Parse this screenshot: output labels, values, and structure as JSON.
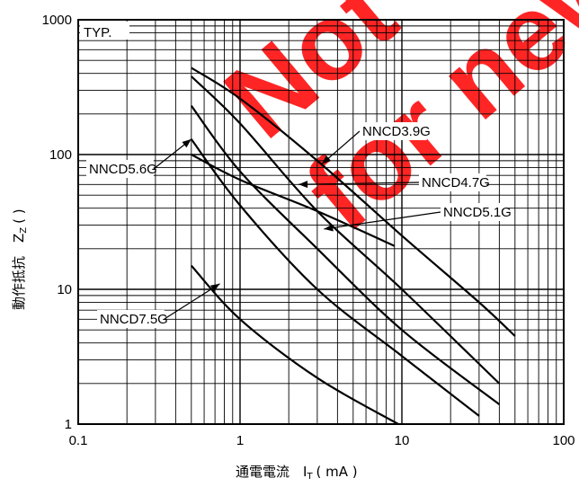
{
  "chart_data": {
    "type": "line",
    "corner_label": "TYP.",
    "xlabel": "通電電流　I",
    "xlabel_sub": "T",
    "xlabel_unit": "( mA )",
    "ylabel": "動作抵抗　Z",
    "ylabel_sub": "Z",
    "ylabel_unit": "(    )",
    "x_scale": "log",
    "y_scale": "log",
    "xlim": [
      0.1,
      100
    ],
    "ylim": [
      1,
      1000
    ],
    "x_ticks": [
      "0.1",
      "1",
      "10",
      "100"
    ],
    "y_ticks": [
      "1",
      "10",
      "100",
      "1000"
    ],
    "grid": true,
    "watermark": [
      "Not",
      "for new"
    ],
    "series": [
      {
        "name": "NNCD3.9G",
        "points": [
          [
            0.5,
            440
          ],
          [
            1,
            260
          ],
          [
            3,
            90
          ],
          [
            10,
            25
          ],
          [
            30,
            8
          ],
          [
            50,
            4.5
          ]
        ]
      },
      {
        "name": "NNCD4.7G",
        "points": [
          [
            0.5,
            380
          ],
          [
            1,
            170
          ],
          [
            3,
            38
          ],
          [
            10,
            10
          ],
          [
            40,
            2
          ]
        ]
      },
      {
        "name": "NNCD5.1G",
        "points": [
          [
            0.5,
            230
          ],
          [
            1,
            75
          ],
          [
            3,
            20
          ],
          [
            10,
            5
          ],
          [
            40,
            1.4
          ]
        ]
      },
      {
        "name": "NNCD5.6G",
        "points": [
          [
            0.5,
            130
          ],
          [
            1,
            42
          ],
          [
            3,
            10
          ],
          [
            10,
            3.2
          ],
          [
            30,
            1.15
          ]
        ]
      },
      {
        "name": "NNCD7.5G",
        "points": [
          [
            0.5,
            15
          ],
          [
            1,
            6
          ],
          [
            3,
            2.2
          ],
          [
            9.5,
            1
          ]
        ]
      },
      {
        "name": "",
        "points": [
          [
            0.5,
            100
          ],
          [
            1,
            65
          ],
          [
            3,
            38
          ],
          [
            9,
            21
          ]
        ]
      }
    ],
    "annotations": [
      {
        "text": "NNCD3.9G",
        "series": "NNCD3.9G"
      },
      {
        "text": "NNCD5.6G",
        "series": "NNCD5.6G"
      },
      {
        "text": "NNCD4.7G",
        "series": "NNCD4.7G"
      },
      {
        "text": "NNCD5.1G",
        "series": "NNCD5.1G"
      },
      {
        "text": "NNCD7.5G",
        "series": "NNCD7.5G"
      }
    ]
  }
}
